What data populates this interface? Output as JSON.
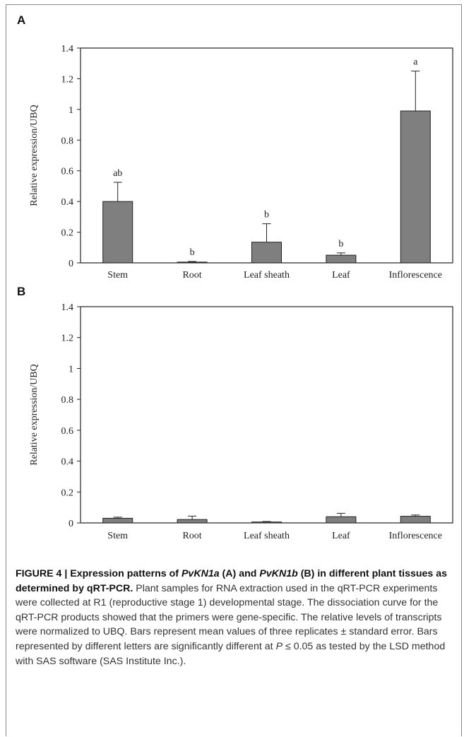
{
  "caption": {
    "figure_title": "FIGURE 4 | Expression patterns of ",
    "gene_a": "PvKN1a",
    "part_a": " (A) and ",
    "gene_b": "PvKN1b",
    "part_b": " (B) in different plant tissues as determined by qRT-PCR.",
    "body_1": " Plant samples for RNA extraction used in the qRT-PCR experiments were collected at R1 (reproductive stage 1) developmental stage. The dissociation curve for the qRT-PCR products showed that the primers were gene-specific. The relative levels of transcripts were normalized to UBQ. Bars represent mean values of three replicates ± standard error. Bars represented by different letters are significantly different at ",
    "p_symbol": "P",
    "body_2": " ≤ 0.05 as tested by the LSD method with SAS software (SAS Institute Inc.)."
  },
  "chart_data": [
    {
      "type": "bar",
      "panel_label": "A",
      "categories": [
        "Stem",
        "Root",
        "Leaf sheath",
        "Leaf",
        "Inflorescence"
      ],
      "values": [
        0.4,
        0.005,
        0.135,
        0.05,
        0.99
      ],
      "errors": [
        0.125,
        0.004,
        0.12,
        0.015,
        0.26
      ],
      "significance_letters": [
        "ab",
        "b",
        "b",
        "b",
        "a"
      ],
      "ylabel": "Relative expression/UBQ",
      "ylim": [
        0,
        1.4
      ],
      "yticks": [
        "0",
        "0.2",
        "0.4",
        "0.6",
        "0.8",
        "1",
        "1.2",
        "1.4"
      ],
      "bar_color": "#7f7f7f"
    },
    {
      "type": "bar",
      "panel_label": "B",
      "categories": [
        "Stem",
        "Root",
        "Leaf sheath",
        "Leaf",
        "Inflorescence"
      ],
      "values": [
        0.03,
        0.022,
        0.006,
        0.04,
        0.043
      ],
      "errors": [
        0.007,
        0.022,
        0.003,
        0.022,
        0.008
      ],
      "significance_letters": [
        "",
        "",
        "",
        "",
        ""
      ],
      "ylabel": "Relative expression/UBQ",
      "ylim": [
        0,
        1.4
      ],
      "yticks": [
        "0",
        "0.2",
        "0.4",
        "0.6",
        "0.8",
        "1",
        "1.2",
        "1.4"
      ],
      "bar_color": "#7f7f7f"
    }
  ]
}
